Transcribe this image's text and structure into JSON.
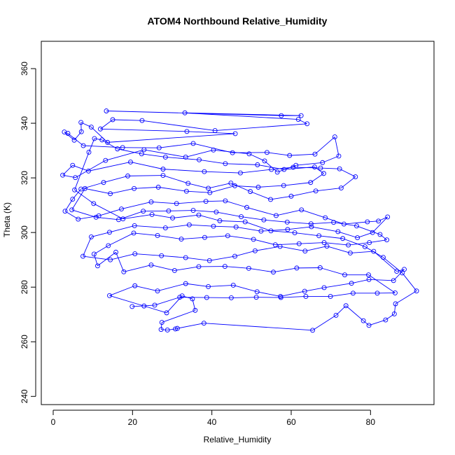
{
  "chart_data": {
    "type": "scatter",
    "title": "ATOM4 Northbound Relative_Humidity",
    "xlabel": "Relative_Humidity",
    "ylabel": "Theta (K)",
    "xlim": [
      -3,
      96
    ],
    "ylim": [
      237,
      370
    ],
    "xticks": [
      0,
      20,
      40,
      60,
      80
    ],
    "yticks": [
      240,
      260,
      280,
      300,
      320,
      340,
      360
    ],
    "grid": false,
    "legend": "none",
    "color": "#0000ff",
    "marker": "open-circle",
    "connect_points": true,
    "series": [
      {
        "points": [
          [
            13.4,
            344.5
          ],
          [
            57.5,
            342.8
          ],
          [
            62.5,
            342.8
          ],
          [
            33.2,
            343.8
          ],
          [
            61.8,
            341.4
          ],
          [
            64.0,
            339.8
          ],
          [
            40.8,
            337.3
          ],
          [
            22.4,
            341.0
          ],
          [
            15.0,
            341.3
          ],
          [
            11.9,
            337.9
          ],
          [
            33.7,
            337.0
          ],
          [
            45.9,
            336.2
          ],
          [
            13.7,
            333.0
          ],
          [
            9.6,
            338.6
          ],
          [
            7.0,
            340.3
          ],
          [
            7.1,
            336.9
          ],
          [
            5.3,
            333.8
          ],
          [
            2.8,
            336.8
          ],
          [
            3.7,
            336.3
          ],
          [
            7.6,
            331.8
          ],
          [
            17.5,
            331.1
          ],
          [
            26.7,
            331.0
          ],
          [
            35.3,
            332.6
          ],
          [
            45.2,
            329.2
          ],
          [
            53.9,
            329.3
          ],
          [
            59.6,
            328.2
          ],
          [
            66.0,
            328.7
          ],
          [
            71.0,
            335.0
          ],
          [
            72.0,
            328.0
          ],
          [
            67.9,
            325.6
          ],
          [
            61.2,
            324.6
          ],
          [
            56.5,
            322.1
          ],
          [
            53.3,
            326.2
          ],
          [
            49.4,
            328.8
          ],
          [
            40.4,
            330.2
          ],
          [
            33.4,
            327.6
          ],
          [
            22.9,
            330.3
          ],
          [
            13.2,
            326.4
          ],
          [
            5.6,
            320.1
          ],
          [
            2.4,
            321.0
          ],
          [
            4.9,
            324.6
          ],
          [
            8.9,
            322.5
          ],
          [
            19.5,
            325.8
          ],
          [
            27.7,
            323.2
          ],
          [
            38.1,
            322.3
          ],
          [
            47.2,
            321.8
          ],
          [
            55.0,
            323.1
          ],
          [
            60.5,
            323.9
          ],
          [
            67.4,
            323.6
          ],
          [
            72.2,
            323.3
          ],
          [
            76.2,
            320.4
          ],
          [
            72.6,
            316.3
          ],
          [
            66.2,
            315.2
          ],
          [
            60.0,
            313.3
          ],
          [
            54.8,
            312.1
          ],
          [
            49.7,
            315.0
          ],
          [
            44.8,
            318.1
          ],
          [
            39.1,
            316.2
          ],
          [
            34.0,
            318.0
          ],
          [
            27.7,
            320.9
          ],
          [
            18.8,
            320.7
          ],
          [
            12.7,
            318.3
          ],
          [
            7.0,
            315.9
          ],
          [
            4.9,
            312.2
          ],
          [
            3.0,
            307.8
          ],
          [
            6.3,
            304.9
          ],
          [
            11.5,
            306.1
          ],
          [
            17.2,
            308.6
          ],
          [
            24.7,
            311.2
          ],
          [
            31.1,
            310.6
          ],
          [
            38.5,
            311.4
          ],
          [
            43.4,
            311.6
          ],
          [
            48.8,
            309.2
          ],
          [
            56.2,
            306.2
          ],
          [
            62.6,
            308.3
          ],
          [
            68.6,
            305.4
          ],
          [
            73.3,
            303.1
          ],
          [
            79.2,
            303.9
          ],
          [
            82.0,
            304.2
          ],
          [
            84.3,
            305.7
          ],
          [
            80.5,
            300.0
          ],
          [
            76.7,
            298.1
          ],
          [
            71.8,
            300.3
          ],
          [
            65.1,
            302.1
          ],
          [
            59.1,
            301.1
          ],
          [
            52.4,
            300.5
          ],
          [
            46.1,
            302.0
          ],
          [
            40.4,
            302.3
          ],
          [
            34.3,
            302.8
          ],
          [
            28.3,
            301.7
          ],
          [
            20.5,
            302.5
          ],
          [
            14.2,
            300.1
          ],
          [
            9.6,
            298.4
          ],
          [
            7.5,
            291.3
          ],
          [
            14.4,
            290.0
          ],
          [
            20.6,
            292.2
          ],
          [
            27.3,
            291.5
          ],
          [
            33.4,
            290.8
          ],
          [
            39.4,
            289.7
          ],
          [
            45.8,
            291.3
          ],
          [
            50.9,
            293.3
          ],
          [
            57.2,
            294.9
          ],
          [
            63.5,
            293.2
          ],
          [
            69.0,
            295.0
          ],
          [
            74.9,
            292.5
          ],
          [
            80.8,
            293.1
          ],
          [
            86.6,
            285.8
          ],
          [
            88.5,
            286.5
          ],
          [
            85.8,
            282.4
          ],
          [
            79.6,
            282.8
          ],
          [
            75.2,
            281.4
          ],
          [
            68.3,
            279.8
          ],
          [
            63.4,
            278.5
          ],
          [
            57.3,
            276.6
          ],
          [
            51.4,
            278.3
          ],
          [
            45.4,
            280.7
          ],
          [
            39.1,
            280.2
          ],
          [
            33.4,
            281.3
          ],
          [
            26.3,
            278.6
          ],
          [
            20.6,
            280.5
          ],
          [
            14.2,
            276.9
          ],
          [
            22.9,
            273.1
          ],
          [
            28.6,
            270.6
          ],
          [
            32.5,
            276.8
          ],
          [
            35.1,
            275.7
          ],
          [
            35.8,
            271.5
          ],
          [
            27.4,
            267.1
          ],
          [
            27.2,
            264.5
          ],
          [
            28.8,
            264.3
          ],
          [
            30.8,
            264.7
          ],
          [
            31.3,
            264.9
          ],
          [
            38.0,
            266.8
          ],
          [
            65.4,
            264.2
          ],
          [
            71.3,
            269.7
          ],
          [
            73.8,
            273.2
          ],
          [
            78.2,
            267.7
          ],
          [
            79.6,
            266.0
          ],
          [
            83.8,
            268.0
          ],
          [
            86.0,
            270.2
          ],
          [
            86.3,
            273.9
          ],
          [
            91.6,
            278.6
          ],
          [
            88.0,
            285.2
          ],
          [
            83.2,
            290.9
          ],
          [
            78.6,
            294.8
          ],
          [
            73.0,
            297.8
          ],
          [
            67.0,
            298.8
          ],
          [
            60.9,
            299.9
          ],
          [
            54.9,
            300.6
          ],
          [
            48.4,
            303.9
          ],
          [
            42.0,
            304.3
          ],
          [
            36.7,
            306.4
          ],
          [
            30.1,
            305.3
          ],
          [
            24.9,
            306.6
          ],
          [
            17.6,
            305.0
          ],
          [
            10.2,
            310.6
          ],
          [
            5.4,
            315.6
          ],
          [
            9.0,
            329.4
          ],
          [
            10.4,
            334.4
          ],
          [
            12.3,
            333.9
          ],
          [
            16.2,
            330.6
          ],
          [
            22.3,
            328.8
          ],
          [
            28.3,
            327.6
          ],
          [
            36.8,
            326.6
          ],
          [
            43.4,
            325.2
          ],
          [
            51.5,
            324.8
          ],
          [
            58.2,
            323.1
          ],
          [
            65.9,
            324.0
          ],
          [
            68.2,
            321.6
          ],
          [
            64.9,
            318.3
          ],
          [
            58.1,
            317.2
          ],
          [
            51.7,
            316.6
          ],
          [
            45.8,
            317.1
          ],
          [
            39.5,
            314.6
          ],
          [
            33.6,
            315.1
          ],
          [
            26.5,
            316.6
          ],
          [
            20.4,
            316.1
          ],
          [
            14.4,
            314.2
          ],
          [
            8.0,
            316.1
          ],
          [
            4.7,
            308.3
          ],
          [
            10.8,
            305.6
          ],
          [
            16.5,
            304.7
          ],
          [
            22.7,
            307.8
          ],
          [
            29.1,
            307.9
          ],
          [
            35.3,
            308.1
          ],
          [
            41.1,
            307.5
          ],
          [
            47.4,
            305.8
          ],
          [
            53.1,
            304.6
          ],
          [
            59.0,
            303.8
          ],
          [
            65.0,
            303.2
          ],
          [
            70.7,
            303.7
          ],
          [
            76.5,
            302.4
          ],
          [
            82.4,
            299.3
          ],
          [
            84.1,
            297.3
          ],
          [
            79.7,
            296.3
          ],
          [
            74.4,
            295.4
          ],
          [
            68.3,
            296.3
          ],
          [
            62.0,
            295.9
          ],
          [
            56.0,
            295.5
          ],
          [
            50.5,
            297.5
          ],
          [
            44.0,
            298.8
          ],
          [
            38.2,
            298.2
          ],
          [
            32.3,
            297.6
          ],
          [
            26.3,
            298.9
          ],
          [
            20.3,
            299.8
          ],
          [
            13.9,
            295.2
          ],
          [
            10.3,
            292.1
          ],
          [
            11.2,
            287.8
          ],
          [
            15.8,
            292.8
          ],
          [
            17.8,
            285.6
          ],
          [
            24.7,
            288.1
          ],
          [
            30.6,
            286.1
          ],
          [
            36.7,
            287.5
          ],
          [
            43.3,
            287.6
          ],
          [
            49.3,
            286.9
          ],
          [
            55.5,
            285.5
          ],
          [
            61.4,
            287.0
          ],
          [
            67.3,
            287.1
          ],
          [
            73.5,
            284.5
          ],
          [
            79.5,
            284.5
          ],
          [
            86.2,
            277.9
          ],
          [
            81.7,
            277.8
          ],
          [
            75.6,
            277.8
          ],
          [
            69.9,
            276.6
          ],
          [
            63.7,
            276.6
          ],
          [
            57.4,
            276.2
          ],
          [
            51.2,
            276.3
          ],
          [
            44.9,
            276.1
          ],
          [
            38.7,
            276.2
          ],
          [
            31.9,
            276.3
          ],
          [
            25.6,
            273.4
          ],
          [
            19.9,
            272.9
          ]
        ]
      }
    ]
  }
}
